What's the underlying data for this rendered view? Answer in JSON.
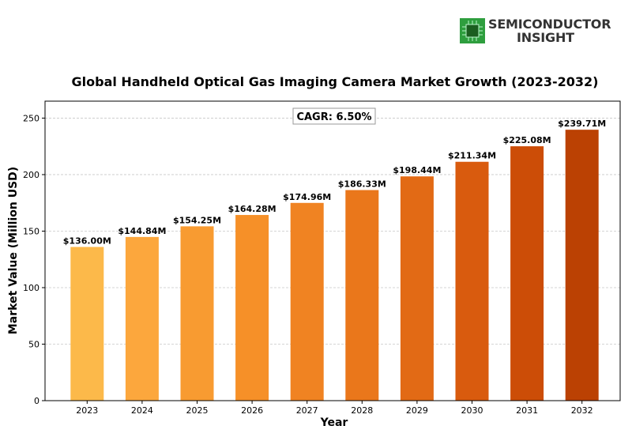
{
  "logo": {
    "line1": "SEMICONDUCTOR",
    "line2": "INSIGHT",
    "icon": "chip-icon"
  },
  "chart_data": {
    "type": "bar",
    "title": "Global Handheld Optical Gas Imaging Camera Market Growth (2023-2032)",
    "xlabel": "Year",
    "ylabel": "Market Value (Million USD)",
    "categories": [
      "2023",
      "2024",
      "2025",
      "2026",
      "2027",
      "2028",
      "2029",
      "2030",
      "2031",
      "2032"
    ],
    "values": [
      136.0,
      144.84,
      154.25,
      164.28,
      174.96,
      186.33,
      198.44,
      211.34,
      225.08,
      239.71
    ],
    "data_labels": [
      "$136.00M",
      "$144.84M",
      "$154.25M",
      "$164.28M",
      "$174.96M",
      "$186.33M",
      "$198.44M",
      "$211.34M",
      "$225.08M",
      "$239.71M"
    ],
    "ylim": [
      0,
      265
    ],
    "yticks": [
      0,
      50,
      100,
      150,
      200,
      250
    ],
    "grid": true,
    "annotation": "CAGR: 6.50%",
    "colors": [
      "#fcb94a",
      "#fca73d",
      "#f89b31",
      "#f69028",
      "#f08322",
      "#ea771b",
      "#e26a15",
      "#d95b0e",
      "#cc4d07",
      "#bb4103"
    ]
  }
}
